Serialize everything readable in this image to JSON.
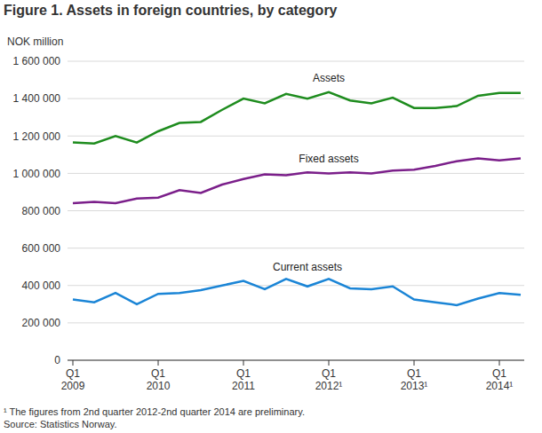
{
  "chart_data": {
    "type": "line",
    "title": "Figure 1. Assets in foreign countries, by category",
    "y_label": "NOK million",
    "annotations": [
      "¹ The figures from 2nd quarter 2012-2nd quarter 2014 are preliminary.",
      "Source: Statistics Norway."
    ],
    "categories": [
      "Q1 2009",
      null,
      null,
      null,
      "Q1 2010",
      null,
      null,
      null,
      "Q1 2011",
      null,
      null,
      null,
      "Q1 2012¹",
      null,
      null,
      null,
      "Q1 2013¹",
      null,
      null,
      null,
      "Q1 2014¹",
      null
    ],
    "series": [
      {
        "name": "Assets",
        "color": "#1e8c1e",
        "values": [
          1165000,
          1160000,
          1200000,
          1165000,
          1225000,
          1270000,
          1275000,
          1340000,
          1400000,
          1375000,
          1425000,
          1400000,
          1435000,
          1390000,
          1375000,
          1405000,
          1350000,
          1350000,
          1360000,
          1415000,
          1430000,
          1430000
        ]
      },
      {
        "name": "Fixed assets",
        "color": "#7b1f8a",
        "values": [
          840000,
          848000,
          840000,
          865000,
          870000,
          910000,
          895000,
          940000,
          970000,
          995000,
          990000,
          1005000,
          1000000,
          1005000,
          1000000,
          1015000,
          1020000,
          1040000,
          1065000,
          1080000,
          1070000,
          1080000
        ]
      },
      {
        "name": "Current assets",
        "color": "#1b85d6",
        "values": [
          325000,
          310000,
          360000,
          300000,
          355000,
          360000,
          375000,
          400000,
          425000,
          380000,
          435000,
          395000,
          435000,
          385000,
          380000,
          395000,
          325000,
          310000,
          295000,
          330000,
          360000,
          350000
        ]
      }
    ],
    "ylim": [
      0,
      1600000
    ],
    "yticks": [
      0,
      {
        "value": 200000,
        "label": "200 000"
      },
      {
        "value": 400000,
        "label": "400 000"
      },
      {
        "value": 600000,
        "label": "600 000"
      },
      {
        "value": 800000,
        "label": "800 000"
      },
      {
        "value": 1000000,
        "label": "1 000 000"
      },
      {
        "value": 1200000,
        "label": "1 200 000"
      },
      {
        "value": 1400000,
        "label": "1 400 000"
      },
      {
        "value": 1600000,
        "label": "1 600 000"
      }
    ],
    "grid": true
  }
}
